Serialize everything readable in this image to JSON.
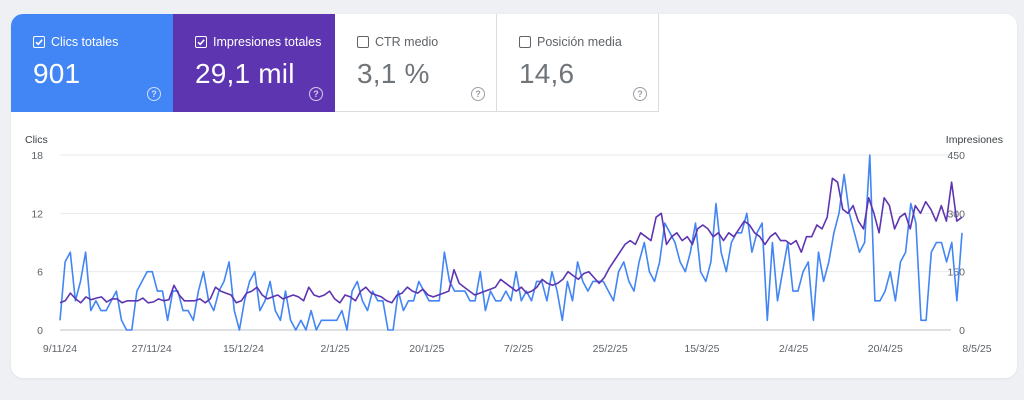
{
  "metrics": [
    {
      "label": "Clics totales",
      "value": "901",
      "checked": true,
      "color": "#4285f4"
    },
    {
      "label": "Impresiones totales",
      "value": "29,1 mil",
      "checked": true,
      "color": "#5e35b1"
    },
    {
      "label": "CTR medio",
      "value": "3,1 %",
      "checked": false
    },
    {
      "label": "Posición media",
      "value": "14,6",
      "checked": false
    }
  ],
  "help_glyph": "?",
  "chart_data": {
    "type": "line",
    "left_axis_title": "Clics",
    "right_axis_title": "Impresiones",
    "y_left_ticks": [
      "18",
      "12",
      "6",
      "0"
    ],
    "y_right_ticks": [
      "450",
      "300",
      "150",
      "0"
    ],
    "y_left_range": [
      0,
      18
    ],
    "y_right_range": [
      0,
      450
    ],
    "x_tick_labels": [
      "9/11/24",
      "27/11/24",
      "15/12/24",
      "2/1/25",
      "20/1/25",
      "7/2/25",
      "25/2/25",
      "15/3/25",
      "2/4/25",
      "20/4/25",
      "8/5/25"
    ],
    "grid": true,
    "series": [
      {
        "name": "Clics",
        "axis": "left",
        "color": "#4285f4",
        "values": [
          1,
          7,
          8,
          3,
          5,
          8,
          2,
          3,
          2,
          2,
          3,
          4,
          1,
          0,
          0,
          4,
          5,
          6,
          6,
          4,
          4,
          1,
          4,
          4,
          2,
          2,
          1,
          4,
          6,
          3,
          2,
          4,
          5,
          7,
          2,
          0,
          3,
          5,
          6,
          2,
          3,
          5,
          2,
          1,
          4,
          1,
          0,
          1,
          0,
          2,
          0,
          1,
          1,
          1,
          1,
          2,
          0,
          4,
          5,
          3,
          2,
          4,
          3,
          3,
          0,
          0,
          4,
          2,
          3,
          3,
          5,
          4,
          3,
          3,
          3,
          8,
          5,
          4,
          4,
          4,
          3,
          3,
          6,
          2,
          4,
          3,
          3,
          4,
          3,
          6,
          3,
          4,
          3,
          5,
          5,
          3,
          6,
          4,
          1,
          5,
          3,
          7,
          5,
          4,
          5,
          5,
          5,
          4,
          3,
          6,
          7,
          5,
          4,
          7,
          9,
          6,
          5,
          7,
          11,
          10,
          9,
          7,
          6,
          8,
          11,
          6,
          5,
          7,
          13,
          8,
          6,
          9,
          10,
          10,
          12,
          8,
          10,
          11,
          1,
          9,
          3,
          6,
          9,
          4,
          4,
          6,
          7,
          1,
          8,
          5,
          7,
          10,
          12,
          16,
          12,
          10,
          8,
          9,
          18,
          3,
          3,
          4,
          6,
          3,
          7,
          8,
          13,
          11,
          1,
          1,
          8,
          9,
          9,
          7,
          9,
          3,
          10
        ]
      },
      {
        "name": "Impresiones",
        "axis": "right",
        "color": "#5e35b1",
        "values": [
          70,
          75,
          95,
          80,
          70,
          85,
          78,
          82,
          85,
          72,
          80,
          80,
          70,
          75,
          75,
          75,
          82,
          70,
          72,
          80,
          75,
          78,
          115,
          90,
          75,
          75,
          75,
          80,
          70,
          80,
          110,
          100,
          95,
          90,
          70,
          75,
          95,
          100,
          110,
          90,
          80,
          85,
          90,
          80,
          85,
          90,
          85,
          75,
          110,
          90,
          85,
          90,
          100,
          80,
          70,
          90,
          85,
          75,
          100,
          110,
          95,
          90,
          85,
          75,
          70,
          90,
          95,
          110,
          100,
          95,
          105,
          90,
          85,
          90,
          95,
          100,
          155,
          120,
          110,
          100,
          90,
          95,
          100,
          105,
          110,
          130,
          120,
          110,
          100,
          110,
          95,
          100,
          110,
          130,
          120,
          115,
          120,
          130,
          150,
          140,
          130,
          145,
          150,
          135,
          120,
          135,
          160,
          180,
          200,
          220,
          230,
          220,
          250,
          240,
          230,
          290,
          300,
          220,
          240,
          250,
          230,
          240,
          220,
          260,
          270,
          260,
          240,
          250,
          230,
          250,
          240,
          260,
          280,
          270,
          250,
          240,
          220,
          240,
          250,
          230,
          230,
          220,
          230,
          200,
          240,
          240,
          270,
          260,
          290,
          390,
          380,
          310,
          300,
          320,
          280,
          260,
          340,
          300,
          250,
          340,
          320,
          260,
          290,
          300,
          260,
          320,
          300,
          330,
          310,
          280,
          320,
          280,
          380,
          280,
          290
        ]
      }
    ]
  }
}
